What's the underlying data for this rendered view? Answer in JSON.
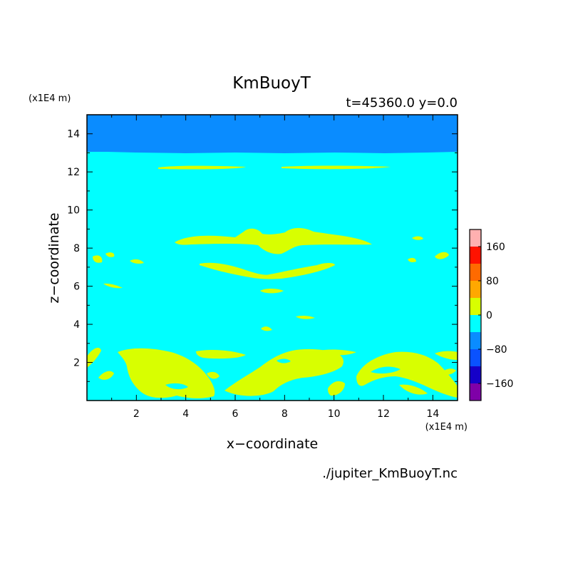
{
  "chart_data": {
    "type": "heatmap",
    "title": "KmBuoyT",
    "subtitle": "t=45360.0 y=0.0",
    "xlabel": "x−coordinate",
    "ylabel": "z−coordinate",
    "x_unit": "(x1E4 m)",
    "y_unit": "(x1E4 m)",
    "source_file": "./jupiter_KmBuoyT.nc",
    "xlim": [
      0,
      15
    ],
    "ylim": [
      0,
      15
    ],
    "x_ticks": [
      "2",
      "4",
      "6",
      "8",
      "10",
      "12",
      "14"
    ],
    "y_ticks": [
      "2",
      "4",
      "6",
      "8",
      "10",
      "12",
      "14"
    ],
    "colorbar": {
      "bins": [
        {
          "from": -200,
          "to": -160,
          "color": "#7f00a8"
        },
        {
          "from": -160,
          "to": -120,
          "color": "#1500c8"
        },
        {
          "from": -120,
          "to": -80,
          "color": "#0a52ff"
        },
        {
          "from": -80,
          "to": -40,
          "color": "#0a8cff"
        },
        {
          "from": -40,
          "to": 0,
          "color": "#00ffff"
        },
        {
          "from": 0,
          "to": 40,
          "color": "#d8ff00"
        },
        {
          "from": 40,
          "to": 80,
          "color": "#ffa800"
        },
        {
          "from": 80,
          "to": 120,
          "color": "#ff6a00"
        },
        {
          "from": 120,
          "to": 160,
          "color": "#ff1200"
        },
        {
          "from": 160,
          "to": 200,
          "color": "#ffb0b0"
        }
      ],
      "labels": [
        "160",
        "80",
        "0",
        "−80",
        "−160"
      ]
    },
    "field": {
      "background_bin": "-40 to 0",
      "upper_layer_bin": "-80 to -40",
      "upper_layer_z_range": [
        12.9,
        15
      ],
      "patch_bin": "0 to 40"
    }
  }
}
